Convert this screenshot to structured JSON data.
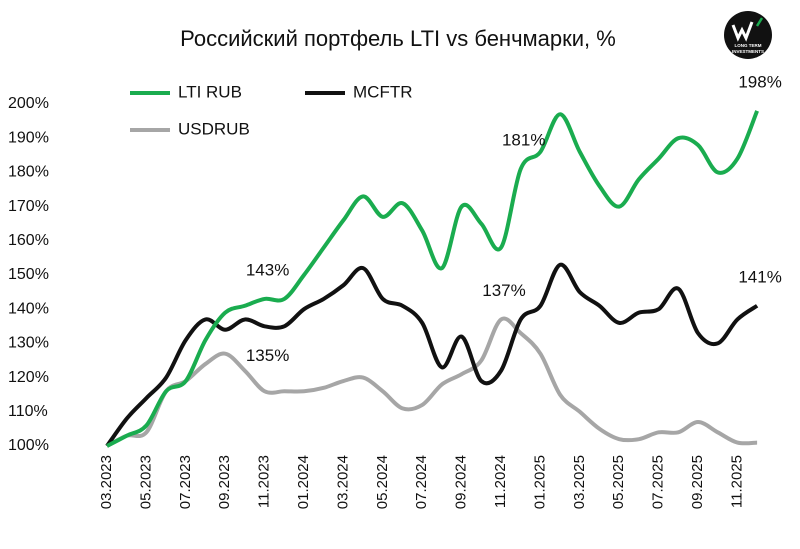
{
  "chart_data": {
    "type": "line",
    "title": "Российский портфель LTI vs бенчмарки, %",
    "logo": [
      "LONG TERM",
      "INVESTMENTS"
    ],
    "categories": [
      "03.2023",
      null,
      "05.2023",
      null,
      "07.2023",
      null,
      "09.2023",
      null,
      "11.2023",
      null,
      "01.2024",
      null,
      "03.2024",
      null,
      "05.2024",
      null,
      "07.2024",
      null,
      "09.2024",
      null,
      "11.2024",
      null,
      "01.2025",
      null,
      "03.2025",
      null,
      "05.2025",
      null,
      "07.2025",
      null,
      "09.2025",
      null,
      "11.2025",
      null
    ],
    "series": [
      {
        "name": "LTI RUB",
        "color": "#1aac4f",
        "values": [
          100,
          103,
          106,
          116,
          119,
          131,
          139,
          141,
          143,
          143,
          150,
          158,
          166,
          173,
          167,
          171,
          163,
          152,
          170,
          165,
          158,
          181,
          186,
          197,
          186,
          176,
          170,
          178,
          184,
          190,
          188,
          180,
          184,
          198
        ],
        "value_labels": [
          null,
          null,
          null,
          null,
          null,
          null,
          null,
          null,
          "143%",
          null,
          null,
          null,
          null,
          null,
          null,
          null,
          null,
          null,
          null,
          null,
          null,
          "181%",
          null,
          null,
          null,
          null,
          null,
          null,
          null,
          null,
          null,
          null,
          null,
          "198%"
        ]
      },
      {
        "name": "MCFTR",
        "color": "#111111",
        "values": [
          100,
          108,
          114,
          120,
          131,
          137,
          134,
          137,
          135,
          135,
          140,
          143,
          147,
          152,
          143,
          141,
          136,
          123,
          132,
          119,
          122,
          137,
          141,
          153,
          145,
          141,
          136,
          139,
          140,
          146,
          133,
          130,
          137,
          141
        ],
        "value_labels": [
          null,
          null,
          null,
          null,
          null,
          null,
          null,
          null,
          "135%",
          null,
          null,
          null,
          null,
          null,
          null,
          null,
          null,
          null,
          null,
          null,
          null,
          null,
          null,
          null,
          null,
          null,
          null,
          null,
          null,
          null,
          null,
          null,
          null,
          "141%"
        ]
      },
      {
        "name": "USDRUB",
        "color": "#a6a6a6",
        "values": [
          100,
          103,
          104,
          116,
          119,
          124,
          127,
          122,
          116,
          116,
          116,
          117,
          119,
          120,
          116,
          111,
          112,
          118,
          121,
          125,
          137,
          133,
          127,
          115,
          110,
          105,
          102,
          102,
          104,
          104,
          107,
          104,
          101,
          101
        ],
        "value_labels": [
          null,
          null,
          null,
          null,
          null,
          null,
          null,
          null,
          null,
          null,
          null,
          null,
          null,
          null,
          null,
          null,
          null,
          null,
          null,
          null,
          "137%",
          null,
          null,
          null,
          null,
          null,
          null,
          null,
          null,
          null,
          null,
          null,
          null,
          null
        ]
      }
    ],
    "ylim": [
      100,
      200
    ],
    "yticks": [
      {
        "value": 100,
        "label": "100%"
      },
      {
        "value": 110,
        "label": "110%"
      },
      {
        "value": 120,
        "label": "120%"
      },
      {
        "value": 130,
        "label": "130%"
      },
      {
        "value": 140,
        "label": "140%"
      },
      {
        "value": 150,
        "label": "150%"
      },
      {
        "value": 160,
        "label": "160%"
      },
      {
        "value": 170,
        "label": "170%"
      },
      {
        "value": 180,
        "label": "180%"
      },
      {
        "value": 190,
        "label": "190%"
      },
      {
        "value": 200,
        "label": "200%"
      }
    ],
    "grid": false
  }
}
